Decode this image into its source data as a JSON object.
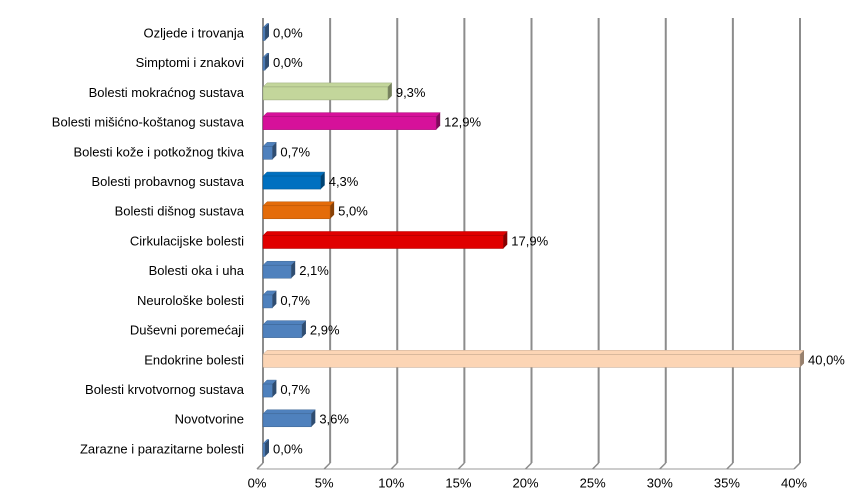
{
  "chart_data": {
    "type": "bar",
    "orientation": "horizontal",
    "categories": [
      "Ozljede i trovanja",
      "Simptomi i znakovi",
      "Bolesti mokraćnog sustava",
      "Bolesti mišićno-koštanog sustava",
      "Bolesti kože i potkožnog tkiva",
      "Bolesti probavnog sustava",
      "Bolesti dišnog sustava",
      "Cirkulacijske bolesti",
      "Bolesti oka i uha",
      "Neurološke bolesti",
      "Duševni poremećaji",
      "Endokrine bolesti",
      "Bolesti krvotvornog sustava",
      "Novotvorine",
      "Zarazne i parazitarne bolesti"
    ],
    "values": [
      0,
      0,
      9.3,
      12.9,
      0.7,
      4.3,
      5.0,
      17.9,
      2.1,
      0.7,
      2.9,
      40.0,
      0.7,
      3.6,
      0
    ],
    "value_labels": [
      "0,0%",
      "0,0%",
      "9,3%",
      "12,9%",
      "0,7%",
      "4,3%",
      "5,0%",
      "17,9%",
      "2,1%",
      "0,7%",
      "2,9%",
      "40,0%",
      "0,7%",
      "3,6%",
      "0,0%"
    ],
    "colors": [
      "#4f81bd",
      "#4f81bd",
      "#c3d69b",
      "#d6119a",
      "#4f81bd",
      "#0070c0",
      "#e46c0a",
      "#e00000",
      "#4f81bd",
      "#4f81bd",
      "#4f81bd",
      "#fcd5b5",
      "#4f81bd",
      "#4f81bd",
      "#4f81bd"
    ],
    "xlim": [
      0,
      40
    ],
    "xticks": [
      {
        "value": 0,
        "label": "0%"
      },
      {
        "value": 5,
        "label": "5%"
      },
      {
        "value": 10,
        "label": "10%"
      },
      {
        "value": 15,
        "label": "15%"
      },
      {
        "value": 20,
        "label": "20%"
      },
      {
        "value": 25,
        "label": "25%"
      },
      {
        "value": 30,
        "label": "30%"
      },
      {
        "value": 35,
        "label": "35%"
      },
      {
        "value": 40,
        "label": "40%"
      }
    ],
    "grid": true
  }
}
